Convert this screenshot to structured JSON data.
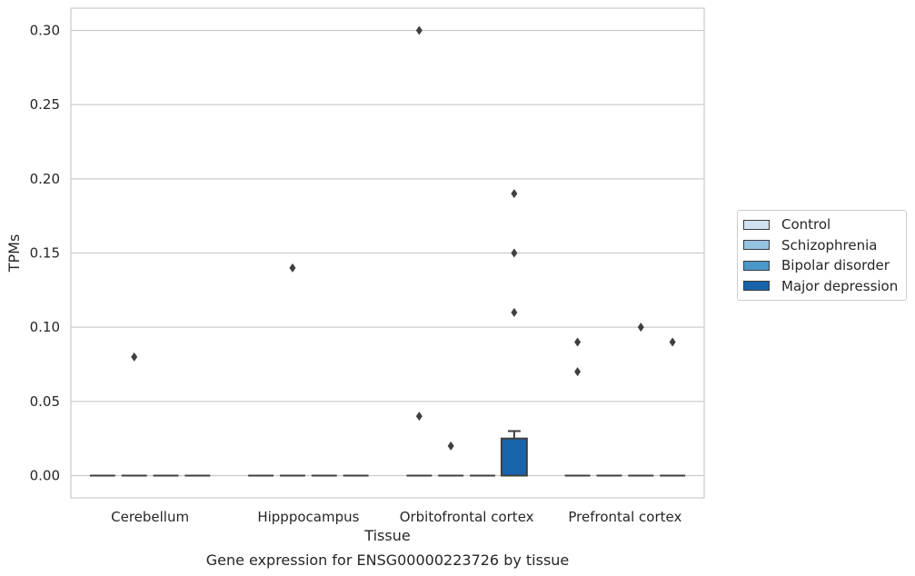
{
  "chart_data": {
    "type": "box",
    "title": "",
    "caption": "Gene expression for ENSG00000223726 by tissue",
    "xlabel": "Tissue",
    "ylabel": "TPMs",
    "ylim": [
      -0.015,
      0.315
    ],
    "yticks": [
      0.0,
      0.05,
      0.1,
      0.15,
      0.2,
      0.25,
      0.3
    ],
    "ytick_labels": [
      "0.00",
      "0.05",
      "0.10",
      "0.15",
      "0.20",
      "0.25",
      "0.30"
    ],
    "grid": "horizontal",
    "legend_position": "center-right",
    "categories": [
      "Cerebellum",
      "Hipppocampus",
      "Orbitofrontal cortex",
      "Prefrontal cortex"
    ],
    "series": [
      {
        "name": "Control",
        "color": "#d0e1f2",
        "boxes": [
          {
            "category": "Cerebellum",
            "q1": 0,
            "median": 0,
            "q3": 0,
            "whisker_low": 0,
            "whisker_high": 0,
            "outliers": []
          },
          {
            "category": "Hipppocampus",
            "q1": 0,
            "median": 0,
            "q3": 0,
            "whisker_low": 0,
            "whisker_high": 0,
            "outliers": []
          },
          {
            "category": "Orbitofrontal cortex",
            "q1": 0,
            "median": 0,
            "q3": 0,
            "whisker_low": 0,
            "whisker_high": 0,
            "outliers": [
              0.3,
              0.04
            ]
          },
          {
            "category": "Prefrontal cortex",
            "q1": 0,
            "median": 0,
            "q3": 0,
            "whisker_low": 0,
            "whisker_high": 0,
            "outliers": [
              0.09,
              0.07
            ]
          }
        ]
      },
      {
        "name": "Schizophrenia",
        "color": "#94c4df",
        "boxes": [
          {
            "category": "Cerebellum",
            "q1": 0,
            "median": 0,
            "q3": 0,
            "whisker_low": 0,
            "whisker_high": 0,
            "outliers": [
              0.08
            ]
          },
          {
            "category": "Hipppocampus",
            "q1": 0,
            "median": 0,
            "q3": 0,
            "whisker_low": 0,
            "whisker_high": 0,
            "outliers": [
              0.14
            ]
          },
          {
            "category": "Orbitofrontal cortex",
            "q1": 0,
            "median": 0,
            "q3": 0,
            "whisker_low": 0,
            "whisker_high": 0,
            "outliers": [
              0.02
            ]
          },
          {
            "category": "Prefrontal cortex",
            "q1": 0,
            "median": 0,
            "q3": 0,
            "whisker_low": 0,
            "whisker_high": 0,
            "outliers": []
          }
        ]
      },
      {
        "name": "Bipolar disorder",
        "color": "#4a98c9",
        "boxes": [
          {
            "category": "Cerebellum",
            "q1": 0,
            "median": 0,
            "q3": 0,
            "whisker_low": 0,
            "whisker_high": 0,
            "outliers": []
          },
          {
            "category": "Hipppocampus",
            "q1": 0,
            "median": 0,
            "q3": 0,
            "whisker_low": 0,
            "whisker_high": 0,
            "outliers": []
          },
          {
            "category": "Orbitofrontal cortex",
            "q1": 0,
            "median": 0,
            "q3": 0,
            "whisker_low": 0,
            "whisker_high": 0,
            "outliers": []
          },
          {
            "category": "Prefrontal cortex",
            "q1": 0,
            "median": 0,
            "q3": 0,
            "whisker_low": 0,
            "whisker_high": 0,
            "outliers": [
              0.1
            ]
          }
        ]
      },
      {
        "name": "Major depression",
        "color": "#1764ab",
        "boxes": [
          {
            "category": "Cerebellum",
            "q1": 0,
            "median": 0,
            "q3": 0,
            "whisker_low": 0,
            "whisker_high": 0,
            "outliers": []
          },
          {
            "category": "Hipppocampus",
            "q1": 0,
            "median": 0,
            "q3": 0,
            "whisker_low": 0,
            "whisker_high": 0,
            "outliers": []
          },
          {
            "category": "Orbitofrontal cortex",
            "q1": 0,
            "median": 0,
            "q3": 0.025,
            "whisker_low": 0,
            "whisker_high": 0.03,
            "outliers": [
              0.19,
              0.15,
              0.11
            ]
          },
          {
            "category": "Prefrontal cortex",
            "q1": 0,
            "median": 0,
            "q3": 0,
            "whisker_low": 0,
            "whisker_high": 0,
            "outliers": [
              0.09
            ]
          }
        ]
      }
    ]
  }
}
